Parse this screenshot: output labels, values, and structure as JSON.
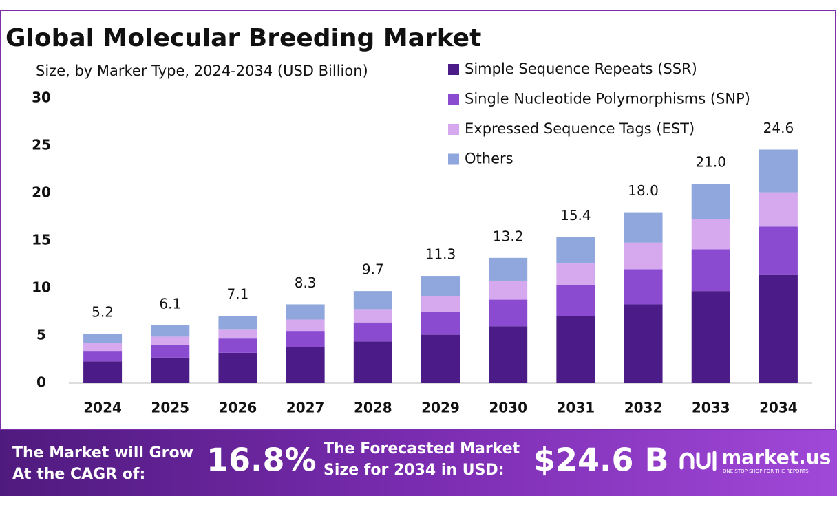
{
  "chart_data": {
    "type": "stacked-bar",
    "title": "Global Molecular Breeding Market",
    "subtitle": "Size, by Marker Type, 2024-2034 (USD Billion)",
    "categories": [
      "2024",
      "2025",
      "2026",
      "2027",
      "2028",
      "2029",
      "2030",
      "2031",
      "2032",
      "2033",
      "2034"
    ],
    "series": [
      {
        "name": "Simple Sequence Repeats (SSR)",
        "color": "#4b1b87",
        "values": [
          2.3,
          2.7,
          3.2,
          3.8,
          4.4,
          5.1,
          6.0,
          7.1,
          8.3,
          9.7,
          11.4
        ]
      },
      {
        "name": "Single Nucleotide Polymorphisms (SNP)",
        "color": "#8a4bd0",
        "values": [
          1.1,
          1.3,
          1.5,
          1.7,
          2.0,
          2.4,
          2.8,
          3.2,
          3.7,
          4.4,
          5.1
        ]
      },
      {
        "name": "Expressed Sequence Tags (EST)",
        "color": "#d6a9ee",
        "values": [
          0.8,
          0.9,
          1.0,
          1.2,
          1.4,
          1.7,
          2.0,
          2.3,
          2.8,
          3.2,
          3.6
        ]
      },
      {
        "name": "Others",
        "color": "#8fa7dc",
        "values": [
          1.0,
          1.2,
          1.4,
          1.6,
          1.9,
          2.1,
          2.4,
          2.8,
          3.2,
          3.7,
          4.5
        ]
      }
    ],
    "totals": {
      "values": [
        5.2,
        6.1,
        7.1,
        8.3,
        9.7,
        11.3,
        13.2,
        15.4,
        18.0,
        21.0,
        24.6
      ],
      "value_labels": [
        "5.2",
        "6.1",
        "7.1",
        "8.3",
        "9.7",
        "11.3",
        "13.2",
        "15.4",
        "18.0",
        "21.0",
        "24.6"
      ]
    },
    "ylim": [
      0,
      30
    ],
    "yticks": [
      0,
      5,
      10,
      15,
      20,
      25,
      30
    ],
    "grid": false,
    "legend": "top-right"
  },
  "footer": {
    "cagr_text": [
      "The Market will Grow",
      "At the CAGR of:"
    ],
    "cagr_value": "16.8%",
    "forecast_text": [
      "The Forecasted Market",
      "Size for 2034 in USD:"
    ],
    "forecast_value": "$24.6 B",
    "brand": "market.us",
    "tagline": "ONE STOP SHOP FOR THE REPORTS"
  }
}
